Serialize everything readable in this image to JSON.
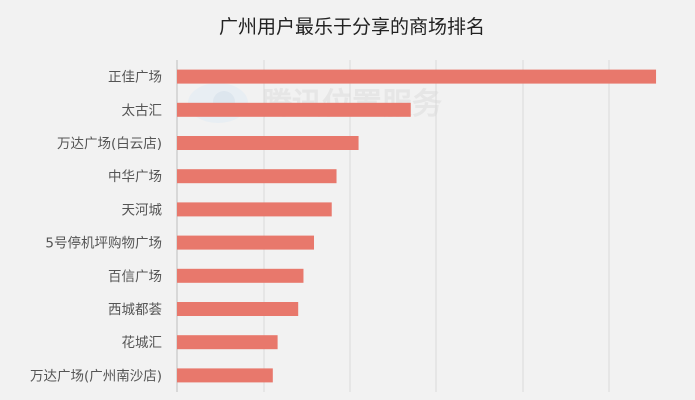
{
  "chart_data": {
    "type": "bar",
    "orientation": "horizontal",
    "title": "广州用户最乐于分享的商场排名",
    "categories": [
      "正佳广场",
      "太古汇",
      "万达广场(白云店)",
      "中华广场",
      "天河城",
      "5号停机坪购物广场",
      "百信广场",
      "西城都荟",
      "花城汇",
      "万达广场(广州南沙店)"
    ],
    "values": [
      100,
      48.8,
      37.9,
      33.3,
      32.3,
      28.6,
      26.4,
      25.3,
      21.0,
      20.0
    ],
    "xlim": [
      0,
      105
    ],
    "grid": true,
    "bar_color": "#e8786c"
  },
  "watermark": "腾讯位置服务"
}
